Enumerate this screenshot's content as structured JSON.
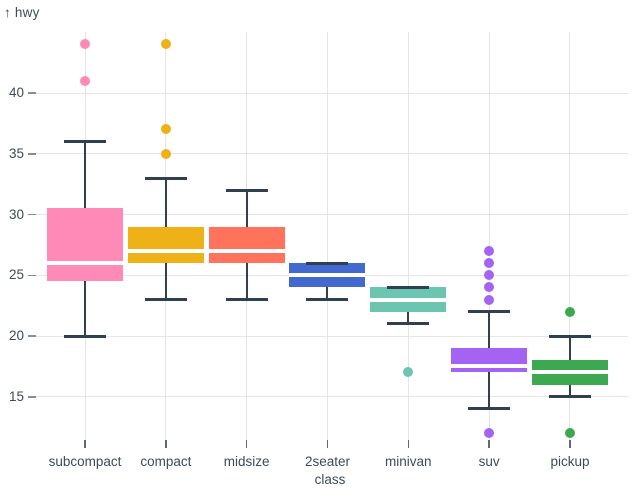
{
  "header": {
    "arrow": "↑",
    "y_axis_label": "hwy"
  },
  "chart_data": {
    "type": "boxplot",
    "title": "",
    "xlabel": "class",
    "ylabel": "hwy",
    "legend": "none",
    "grid": "both",
    "y_ticks": [
      15,
      20,
      25,
      30,
      35,
      40
    ],
    "categories": [
      "subcompact",
      "compact",
      "midsize",
      "2seater",
      "minivan",
      "suv",
      "pickup"
    ],
    "series": [
      {
        "category": "subcompact",
        "color": "#ff8ab7",
        "min": 20,
        "q1": 24.5,
        "median": 26,
        "q3": 30.5,
        "max": 36,
        "outliers": [
          41,
          44
        ]
      },
      {
        "category": "compact",
        "color": "#efb118",
        "min": 23,
        "q1": 26,
        "median": 27,
        "q3": 29,
        "max": 33,
        "outliers": [
          35,
          37,
          44
        ]
      },
      {
        "category": "midsize",
        "color": "#ff725c",
        "min": 23,
        "q1": 26,
        "median": 27,
        "q3": 29,
        "max": 32,
        "outliers": []
      },
      {
        "category": "2seater",
        "color": "#4269d0",
        "min": 23,
        "q1": 24,
        "median": 25,
        "q3": 26,
        "max": 26,
        "outliers": []
      },
      {
        "category": "minivan",
        "color": "#6cc5b0",
        "min": 21,
        "q1": 22,
        "median": 23,
        "q3": 24,
        "max": 24,
        "outliers": [
          17
        ]
      },
      {
        "category": "suv",
        "color": "#a463f2",
        "min": 14,
        "q1": 17,
        "median": 17.5,
        "q3": 19,
        "max": 22,
        "outliers": [
          27,
          26,
          25,
          24,
          23,
          12
        ]
      },
      {
        "category": "pickup",
        "color": "#3ca951",
        "min": 15,
        "q1": 16,
        "median": 17,
        "q3": 18,
        "max": 20,
        "outliers": [
          22,
          12
        ]
      }
    ],
    "styles": {
      "background": "#ffffff",
      "grid_color": "#e3e5e8",
      "rule_color": "#2f4050",
      "median_color": "#ffffff",
      "text_color": "#3d4b59"
    }
  }
}
